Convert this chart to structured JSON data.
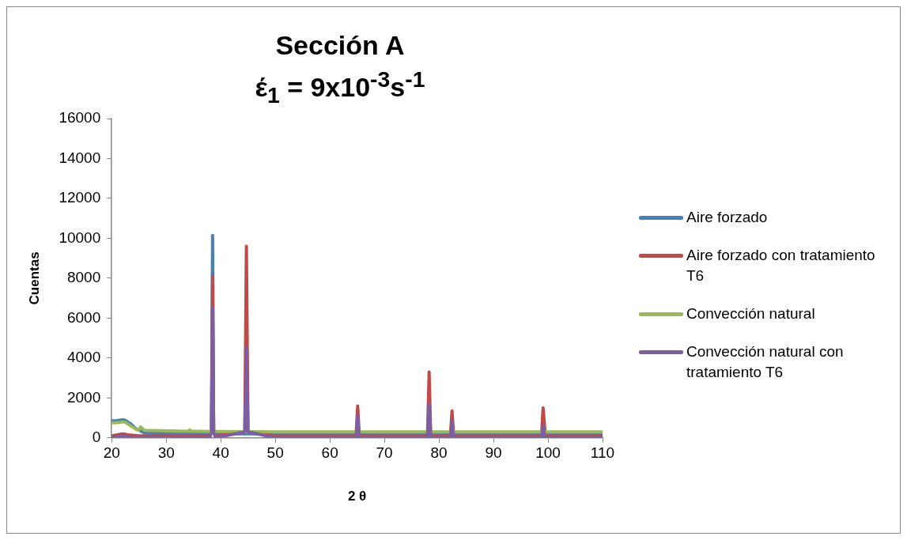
{
  "chart_data": {
    "type": "line",
    "title": "Sección A",
    "subtitle": "έ$_{1}$ = 9x10$^{-3}$s$^{-1}$",
    "xlabel": "2 θ",
    "ylabel": "Cuentas",
    "xlim": [
      20,
      110
    ],
    "xticks": [
      20,
      30,
      40,
      50,
      60,
      70,
      80,
      90,
      100,
      110
    ],
    "ylim": [
      0,
      16000
    ],
    "yticks": [
      0,
      2000,
      4000,
      6000,
      8000,
      10000,
      12000,
      14000,
      16000
    ],
    "grid": false,
    "legend": "right",
    "marker": "none",
    "line_style": "solid",
    "series": [
      {
        "name": "Aire forzado",
        "color": "#4a7ebb",
        "x": [
          20,
          21,
          22,
          22.5,
          23.5,
          24.5,
          26,
          30,
          38,
          38.3,
          38.5,
          38.7,
          39,
          50,
          60,
          70,
          80,
          90,
          100,
          110
        ],
        "values": [
          850,
          860,
          900,
          880,
          700,
          450,
          250,
          220,
          200,
          400,
          10150,
          400,
          200,
          200,
          200,
          200,
          200,
          200,
          200,
          200
        ]
      },
      {
        "name": "Aire forzado con tratamiento T6",
        "color": "#be4b48",
        "x": [
          20,
          21,
          22,
          23,
          25,
          30,
          38,
          38.3,
          38.5,
          38.7,
          39,
          44.4,
          44.7,
          45,
          50,
          64.8,
          65.1,
          65.4,
          77.9,
          78.2,
          78.5,
          82.1,
          82.4,
          82.7,
          98.8,
          99.1,
          99.3,
          99.5,
          110
        ],
        "values": [
          100,
          150,
          200,
          150,
          100,
          100,
          100,
          300,
          8100,
          300,
          100,
          300,
          9600,
          300,
          100,
          100,
          1600,
          100,
          100,
          3300,
          100,
          100,
          1350,
          100,
          100,
          1500,
          800,
          100,
          100
        ]
      },
      {
        "name": "Convección natural",
        "color": "#98b954",
        "x": [
          20,
          21,
          22,
          22.5,
          23.5,
          24.5,
          25,
          25.3,
          26,
          30,
          34,
          34.3,
          34.6,
          38,
          40,
          50,
          60,
          70,
          80,
          90,
          100,
          110
        ],
        "values": [
          750,
          760,
          800,
          780,
          600,
          420,
          400,
          550,
          380,
          350,
          330,
          400,
          330,
          320,
          320,
          300,
          300,
          300,
          300,
          300,
          300,
          300
        ]
      },
      {
        "name": "Convección natural con tratamiento T6",
        "color": "#7d5fa0",
        "x": [
          20,
          21,
          22,
          23,
          25,
          30,
          38,
          38.3,
          38.5,
          38.7,
          39,
          44.4,
          44.7,
          45,
          50,
          64.8,
          65.1,
          65.4,
          77.9,
          78.2,
          78.5,
          82.1,
          82.4,
          82.7,
          98.8,
          99.1,
          99.4,
          110
        ],
        "values": [
          0,
          50,
          100,
          50,
          0,
          0,
          0,
          300,
          6500,
          300,
          0,
          300,
          4500,
          300,
          0,
          0,
          1100,
          0,
          0,
          1700,
          0,
          0,
          850,
          0,
          0,
          600,
          0,
          0
        ]
      }
    ]
  }
}
